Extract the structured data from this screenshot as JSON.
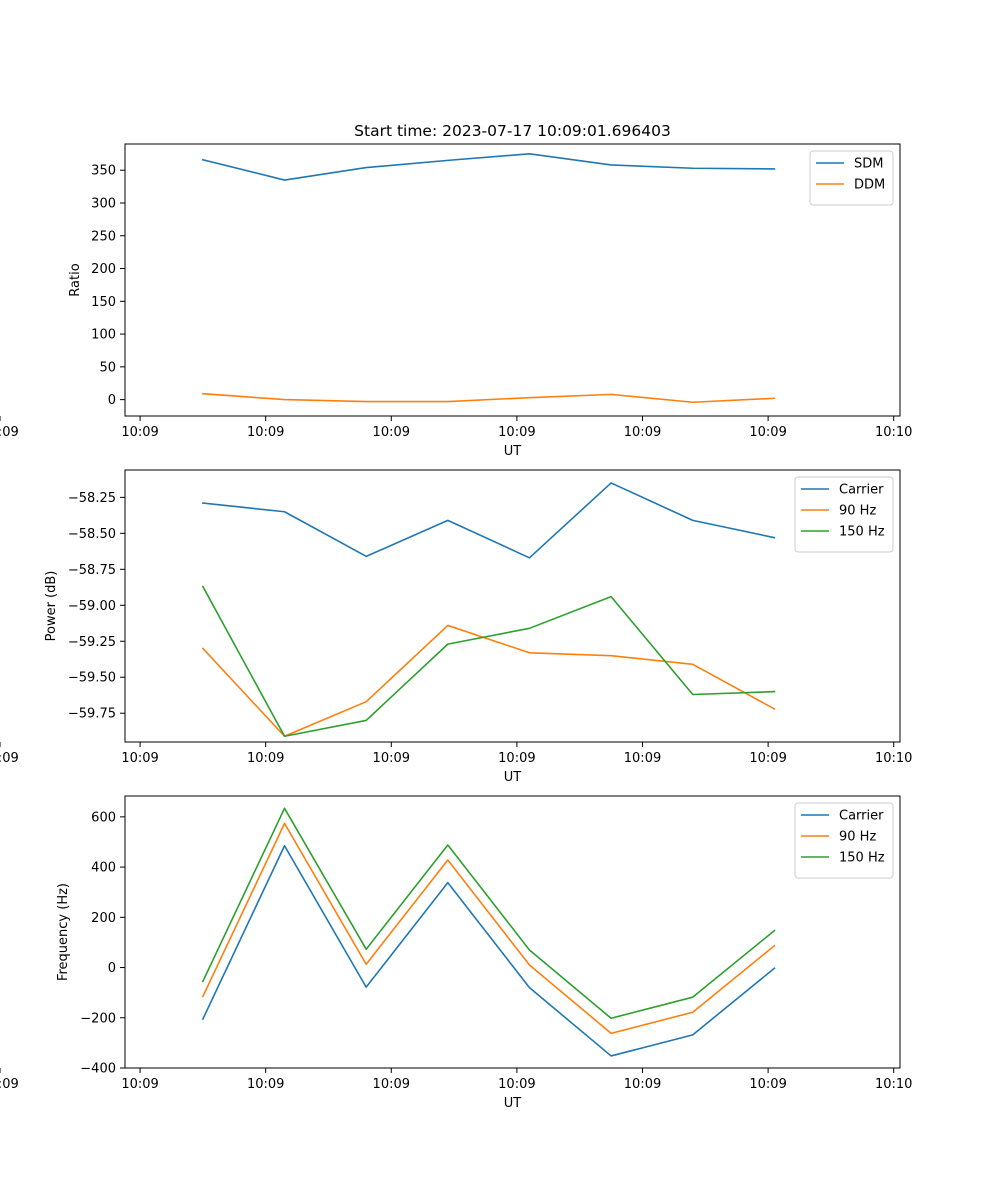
{
  "chart_data": {
    "title": "Start time: 2023-07-17 10:09:01.696403",
    "panels": [
      {
        "type": "line",
        "xlabel": "UT",
        "ylabel": "Ratio",
        "x_tick_labels": [
          "10:09",
          "10:09",
          "10:09",
          "10:09",
          "10:09",
          "10:09",
          "10:09"
        ],
        "x_edge_label": "10:10",
        "yticks": [
          0,
          50,
          100,
          150,
          200,
          250,
          300,
          350
        ],
        "ylim": [
          -25,
          390
        ],
        "x": [
          0.5,
          1.15,
          1.8,
          2.45,
          3.1,
          3.75,
          4.4,
          5.05
        ],
        "xlim": [
          -0.12,
          6.05
        ],
        "legend": "top-right",
        "series": [
          {
            "name": "SDM",
            "color": "#1f77b4",
            "values": [
              366,
              335,
              354,
              365,
              375,
              358,
              353,
              352
            ]
          },
          {
            "name": "DDM",
            "color": "#ff7f0e",
            "values": [
              9,
              0,
              -3,
              -3,
              3,
              8,
              -4,
              2
            ]
          }
        ]
      },
      {
        "type": "line",
        "xlabel": "UT",
        "ylabel": "Power (dB)",
        "x_tick_labels": [
          "10:09",
          "10:09",
          "10:09",
          "10:09",
          "10:09",
          "10:09",
          "10:09"
        ],
        "x_edge_label": "10:10",
        "yticks": [
          -58.25,
          -58.5,
          -58.75,
          -59.0,
          -59.25,
          -59.5,
          -59.75
        ],
        "ytick_labels": [
          "−58.25",
          "−58.50",
          "−58.75",
          "−59.00",
          "−59.25",
          "−59.50",
          "−59.75"
        ],
        "ylim": [
          -59.95,
          -58.06
        ],
        "x": [
          0.5,
          1.15,
          1.8,
          2.45,
          3.1,
          3.75,
          4.4,
          5.05
        ],
        "xlim": [
          -0.12,
          6.05
        ],
        "legend": "top-right",
        "series": [
          {
            "name": "Carrier",
            "color": "#1f77b4",
            "values": [
              -58.29,
              -58.35,
              -58.66,
              -58.41,
              -58.67,
              -58.15,
              -58.41,
              -58.53
            ]
          },
          {
            "name": "90 Hz",
            "color": "#ff7f0e",
            "values": [
              -59.3,
              -59.91,
              -59.67,
              -59.14,
              -59.33,
              -59.35,
              -59.41,
              -59.72
            ]
          },
          {
            "name": "150 Hz",
            "color": "#2ca02c",
            "values": [
              -58.87,
              -59.91,
              -59.8,
              -59.27,
              -59.16,
              -58.94,
              -59.62,
              -59.6
            ]
          }
        ]
      },
      {
        "type": "line",
        "xlabel": "UT",
        "ylabel": "Frequency (Hz)",
        "x_tick_labels": [
          "10:09",
          "10:09",
          "10:09",
          "10:09",
          "10:09",
          "10:09",
          "10:09"
        ],
        "x_edge_label": "10:10",
        "yticks": [
          600,
          400,
          200,
          0,
          -200,
          -400
        ],
        "ytick_labels": [
          "600",
          "400",
          "200",
          "0",
          "−200",
          "−400"
        ],
        "ylim": [
          -400,
          683
        ],
        "x": [
          0.5,
          1.15,
          1.8,
          2.45,
          3.1,
          3.75,
          4.4,
          5.05
        ],
        "xlim": [
          -0.12,
          6.05
        ],
        "legend": "top-right",
        "series": [
          {
            "name": "Carrier",
            "color": "#1f77b4",
            "values": [
              -205,
              485,
              -78,
              338,
              -80,
              -352,
              -268,
              -3
            ]
          },
          {
            "name": "90 Hz",
            "color": "#ff7f0e",
            "values": [
              -115,
              574,
              13,
              428,
              10,
              -262,
              -178,
              87
            ]
          },
          {
            "name": "150 Hz",
            "color": "#2ca02c",
            "values": [
              -55,
              634,
              73,
              488,
              70,
              -202,
              -118,
              147
            ]
          }
        ]
      }
    ]
  }
}
